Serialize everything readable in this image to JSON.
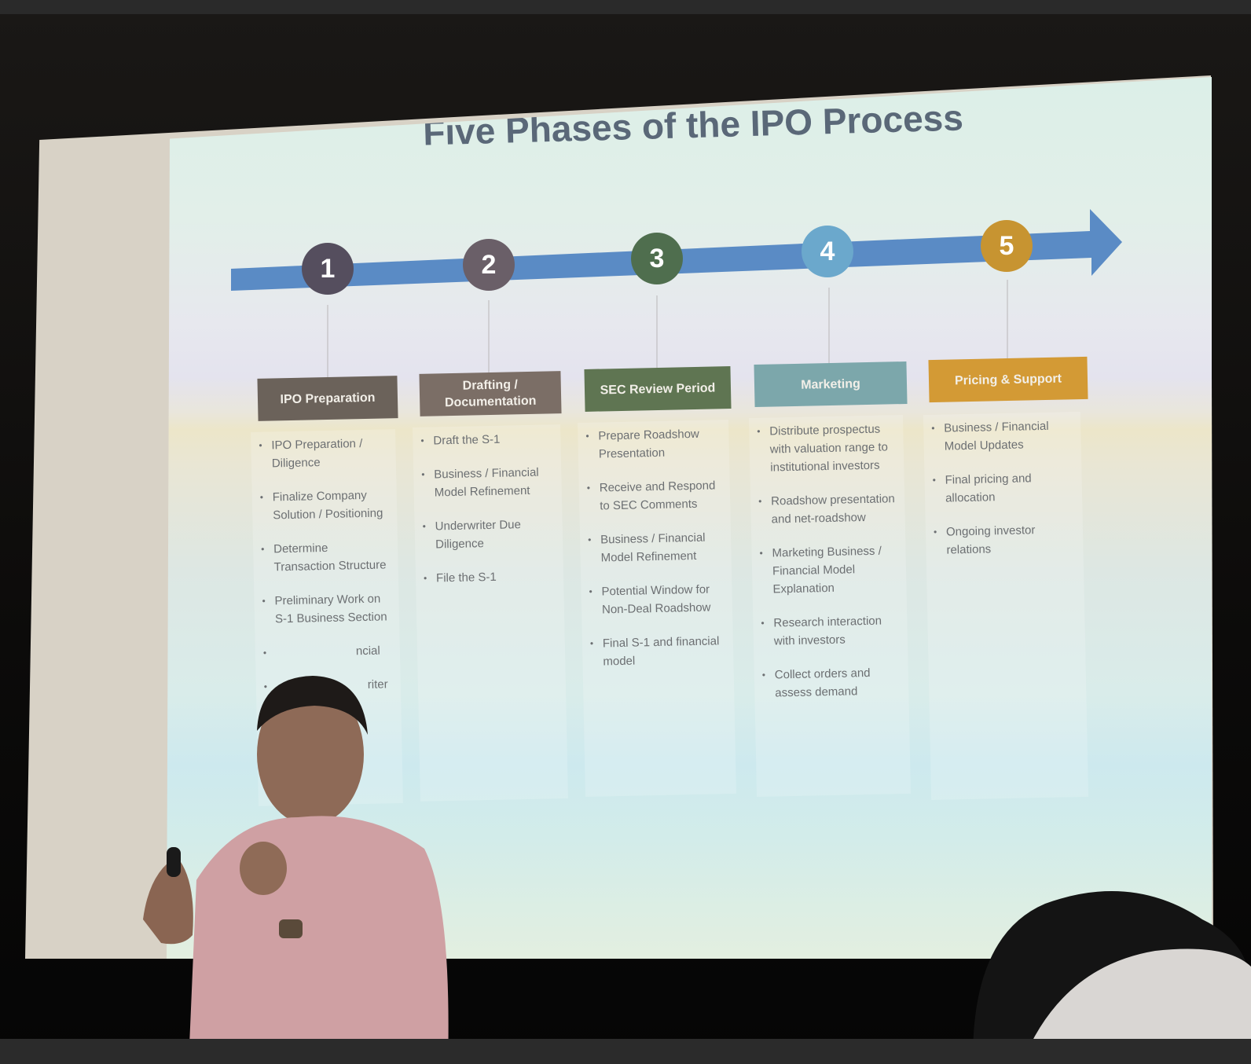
{
  "slide": {
    "title": "Five Phases of the IPO Process"
  },
  "colors": {
    "arrow": "#5a8bc5",
    "phase1": "#554e5e",
    "phase2": "#6a5f68",
    "phase3": "#4f6e4e",
    "phase4": "#6ba8cc",
    "phase5": "#c79431",
    "header1": "#6b625a",
    "header2": "#7b6e66",
    "header3": "#5f7552",
    "header4": "#7ca7ab",
    "header5": "#d39a35"
  },
  "phases": [
    {
      "number": "1",
      "header": "IPO Preparation",
      "bullets": [
        "IPO Preparation / Diligence",
        "Finalize Company Solution / Positioning",
        "Determine Transaction Structure",
        "Preliminary Work on S-1 Business Section"
      ],
      "occluded_fragments": [
        "ncial",
        "riter"
      ]
    },
    {
      "number": "2",
      "header": "Drafting / Documentation",
      "bullets": [
        "Draft the S-1",
        "Business / Financial Model Refinement",
        "Underwriter Due Diligence",
        "File the S-1"
      ]
    },
    {
      "number": "3",
      "header": "SEC Review Period",
      "bullets": [
        "Prepare Roadshow Presentation",
        "Receive and Respond to SEC Comments",
        "Business / Financial Model Refinement",
        "Potential Window for Non-Deal Roadshow",
        "Final S-1 and financial model"
      ]
    },
    {
      "number": "4",
      "header": "Marketing",
      "bullets": [
        "Distribute prospectus with valuation range to institutional investors",
        "Roadshow presentation and net-roadshow",
        "Marketing Business / Financial Model Explanation",
        "Research interaction with investors",
        "Collect orders and assess demand"
      ]
    },
    {
      "number": "5",
      "header": "Pricing & Support",
      "bullets": [
        "Business / Financial Model Updates",
        "Final pricing and allocation",
        "Ongoing investor relations"
      ]
    }
  ]
}
